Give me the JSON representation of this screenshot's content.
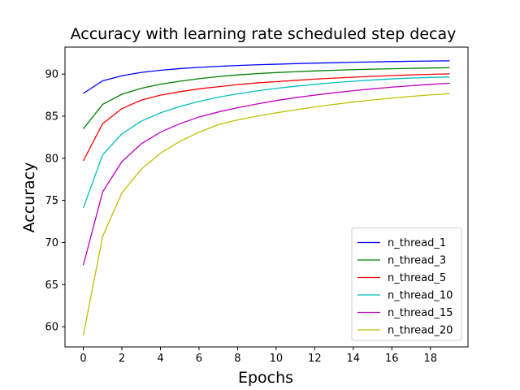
{
  "chart_data": {
    "type": "line",
    "title": "Accuracy with learning rate scheduled step decay",
    "xlabel": "Epochs",
    "ylabel": "Accuracy",
    "xlim": [
      -0.95,
      19.95
    ],
    "ylim": [
      57.6,
      93.2
    ],
    "xticks": [
      0,
      2,
      4,
      6,
      8,
      10,
      12,
      14,
      16,
      18
    ],
    "yticks": [
      60,
      65,
      70,
      75,
      80,
      85,
      90
    ],
    "grid": false,
    "legend_position": "lower-right",
    "x": [
      0,
      1,
      2,
      3,
      4,
      5,
      6,
      7,
      8,
      9,
      10,
      11,
      12,
      13,
      14,
      15,
      16,
      17,
      18,
      19
    ],
    "series": [
      {
        "name": "n_thread_1",
        "color": "#0000ff",
        "values": [
          87.7,
          89.2,
          89.8,
          90.2,
          90.45,
          90.65,
          90.8,
          90.92,
          91.02,
          91.1,
          91.17,
          91.24,
          91.3,
          91.35,
          91.4,
          91.44,
          91.48,
          91.52,
          91.55,
          91.57
        ]
      },
      {
        "name": "n_thread_3",
        "color": "#008000",
        "values": [
          83.5,
          86.4,
          87.6,
          88.3,
          88.8,
          89.15,
          89.45,
          89.7,
          89.9,
          90.05,
          90.18,
          90.28,
          90.37,
          90.45,
          90.52,
          90.58,
          90.63,
          90.68,
          90.72,
          90.75
        ]
      },
      {
        "name": "n_thread_5",
        "color": "#ff0000",
        "values": [
          79.7,
          84.1,
          85.9,
          86.9,
          87.5,
          87.9,
          88.25,
          88.5,
          88.75,
          88.95,
          89.1,
          89.25,
          89.4,
          89.52,
          89.63,
          89.73,
          89.82,
          89.9,
          89.97,
          90.03
        ]
      },
      {
        "name": "n_thread_10",
        "color": "#00bfbf",
        "values": [
          74.1,
          80.4,
          82.9,
          84.4,
          85.4,
          86.15,
          86.75,
          87.25,
          87.65,
          88.0,
          88.3,
          88.55,
          88.78,
          88.98,
          89.15,
          89.3,
          89.43,
          89.53,
          89.6,
          89.65
        ]
      },
      {
        "name": "n_thread_15",
        "color": "#bf00bf",
        "values": [
          67.3,
          76.0,
          79.6,
          81.7,
          83.1,
          84.1,
          84.9,
          85.5,
          86.0,
          86.45,
          86.85,
          87.2,
          87.5,
          87.78,
          88.03,
          88.25,
          88.45,
          88.62,
          88.78,
          88.92
        ]
      },
      {
        "name": "n_thread_20",
        "color": "#bfbf00",
        "values": [
          59.0,
          70.7,
          75.9,
          78.7,
          80.6,
          82.0,
          83.1,
          84.0,
          84.55,
          85.0,
          85.4,
          85.75,
          86.1,
          86.4,
          86.68,
          86.93,
          87.15,
          87.35,
          87.53,
          87.68
        ]
      }
    ]
  }
}
